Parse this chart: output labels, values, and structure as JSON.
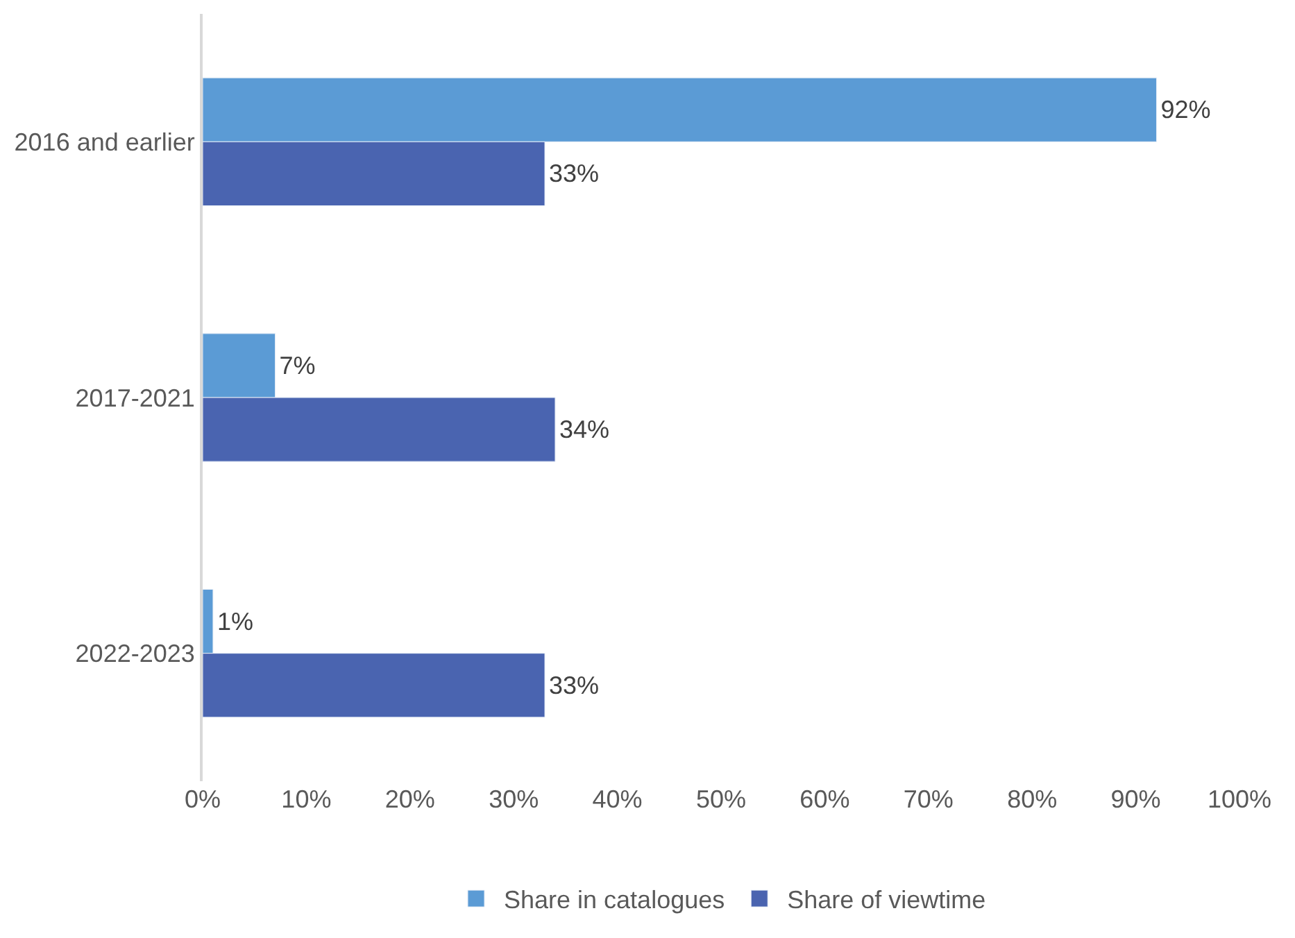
{
  "chart_data": {
    "type": "bar",
    "orientation": "horizontal",
    "categories": [
      "2016 and earlier",
      "2017-2021",
      "2022-2023"
    ],
    "series": [
      {
        "name": "Share in catalogues",
        "color": "#5b9bd5",
        "values": [
          92,
          7,
          1
        ],
        "value_labels": [
          "92%",
          "7%",
          "1%"
        ]
      },
      {
        "name": "Share of viewtime",
        "color": "#4a64b0",
        "values": [
          33,
          34,
          33
        ],
        "value_labels": [
          "33%",
          "34%",
          "33%"
        ]
      }
    ],
    "xlim": [
      0,
      100
    ],
    "xticks": [
      {
        "value": 0,
        "label": "0%"
      },
      {
        "value": 10,
        "label": "10%"
      },
      {
        "value": 20,
        "label": "20%"
      },
      {
        "value": 30,
        "label": "30%"
      },
      {
        "value": 40,
        "label": "40%"
      },
      {
        "value": 50,
        "label": "50%"
      },
      {
        "value": 60,
        "label": "60%"
      },
      {
        "value": 70,
        "label": "70%"
      },
      {
        "value": 80,
        "label": "80%"
      },
      {
        "value": 90,
        "label": "90%"
      },
      {
        "value": 100,
        "label": "100%"
      }
    ],
    "legend": "bottom"
  }
}
